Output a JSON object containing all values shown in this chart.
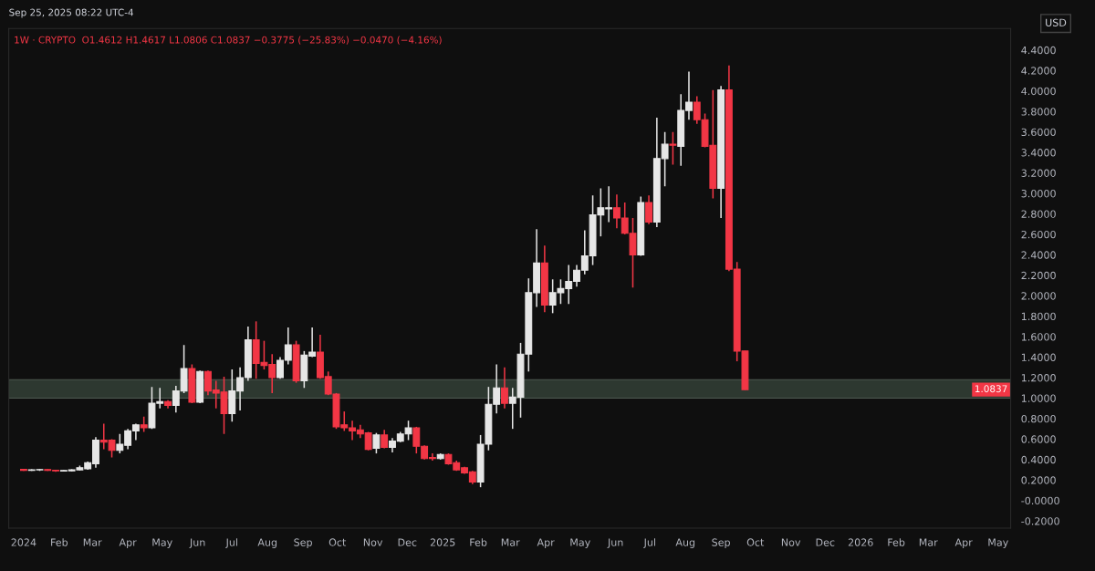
{
  "chart_data": {
    "type": "candlestick",
    "title": "1W · CRYPTO  O1.4612 H1.4617 L1.0806 C1.0837 −0.3775 (−25.83%) −0.0470 (−4.16%)",
    "ylabel": "USD",
    "annotations": [
      "Sep 25, 2025 08:22 UTC-4",
      {
        "text": "1.0837",
        "y": 1.0837
      }
    ],
    "x": [
      "2024-01-01",
      "2024-01-08",
      "2024-01-15",
      "2024-01-22",
      "2024-01-29",
      "2024-02-05",
      "2024-02-12",
      "2024-02-19",
      "2024-02-26",
      "2024-03-04",
      "2024-03-11",
      "2024-03-18",
      "2024-03-25",
      "2024-04-01",
      "2024-04-08",
      "2024-04-15",
      "2024-04-22",
      "2024-04-29",
      "2024-05-06",
      "2024-05-13",
      "2024-05-20",
      "2024-05-27",
      "2024-06-03",
      "2024-06-10",
      "2024-06-17",
      "2024-06-24",
      "2024-07-01",
      "2024-07-08",
      "2024-07-15",
      "2024-07-22",
      "2024-07-29",
      "2024-08-05",
      "2024-08-12",
      "2024-08-19",
      "2024-08-26",
      "2024-09-02",
      "2024-09-09",
      "2024-09-16",
      "2024-09-23",
      "2024-09-30",
      "2024-10-07",
      "2024-10-14",
      "2024-10-21",
      "2024-10-28",
      "2024-11-04",
      "2024-11-11",
      "2024-11-18",
      "2024-11-25",
      "2024-12-02",
      "2024-12-09",
      "2024-12-16",
      "2024-12-23",
      "2024-12-30",
      "2025-01-06",
      "2025-01-13",
      "2025-01-20",
      "2025-01-27",
      "2025-02-03",
      "2025-02-10",
      "2025-02-17",
      "2025-02-24",
      "2025-03-03",
      "2025-03-10",
      "2025-03-17",
      "2025-03-24",
      "2025-03-31",
      "2025-04-07",
      "2025-04-14",
      "2025-04-21",
      "2025-04-28",
      "2025-05-05",
      "2025-05-12",
      "2025-05-19",
      "2025-05-26",
      "2025-06-02",
      "2025-06-09",
      "2025-06-16",
      "2025-06-23",
      "2025-06-30",
      "2025-07-07",
      "2025-07-14",
      "2025-07-21",
      "2025-07-28",
      "2025-08-04",
      "2025-08-11",
      "2025-08-18",
      "2025-08-25",
      "2025-09-01",
      "2025-09-08",
      "2025-09-15",
      "2025-09-22"
    ],
    "ohlc": [
      [
        0.305,
        0.31,
        0.29,
        0.295
      ],
      [
        0.295,
        0.305,
        0.29,
        0.3
      ],
      [
        0.3,
        0.305,
        0.29,
        0.302
      ],
      [
        0.302,
        0.305,
        0.29,
        0.295
      ],
      [
        0.295,
        0.3,
        0.28,
        0.29
      ],
      [
        0.287,
        0.296,
        0.283,
        0.293
      ],
      [
        0.29,
        0.305,
        0.285,
        0.3
      ],
      [
        0.3,
        0.34,
        0.295,
        0.32
      ],
      [
        0.31,
        0.38,
        0.3,
        0.37
      ],
      [
        0.36,
        0.62,
        0.32,
        0.59
      ],
      [
        0.59,
        0.75,
        0.5,
        0.57
      ],
      [
        0.59,
        0.6,
        0.42,
        0.49
      ],
      [
        0.49,
        0.65,
        0.46,
        0.55
      ],
      [
        0.54,
        0.7,
        0.5,
        0.68
      ],
      [
        0.68,
        0.75,
        0.59,
        0.74
      ],
      [
        0.74,
        0.82,
        0.67,
        0.71
      ],
      [
        0.71,
        1.11,
        0.7,
        0.95
      ],
      [
        0.95,
        1.1,
        0.9,
        0.965
      ],
      [
        0.965,
        0.98,
        0.9,
        0.93
      ],
      [
        0.93,
        1.12,
        0.86,
        1.07
      ],
      [
        1.07,
        1.52,
        1.05,
        1.29
      ],
      [
        1.29,
        1.33,
        0.95,
        0.96
      ],
      [
        0.96,
        1.27,
        0.95,
        1.26
      ],
      [
        1.26,
        1.27,
        1.03,
        1.07
      ],
      [
        1.08,
        1.17,
        0.9,
        1.05
      ],
      [
        1.06,
        1.21,
        0.65,
        0.85
      ],
      [
        0.85,
        1.28,
        0.77,
        1.07
      ],
      [
        1.07,
        1.3,
        0.88,
        1.2
      ],
      [
        1.2,
        1.7,
        1.17,
        1.57
      ],
      [
        1.57,
        1.75,
        1.19,
        1.34
      ],
      [
        1.35,
        1.56,
        1.28,
        1.32
      ],
      [
        1.33,
        1.43,
        1.05,
        1.2
      ],
      [
        1.2,
        1.4,
        1.19,
        1.37
      ],
      [
        1.37,
        1.69,
        1.33,
        1.52
      ],
      [
        1.52,
        1.56,
        1.15,
        1.17
      ],
      [
        1.17,
        1.46,
        1.1,
        1.42
      ],
      [
        1.41,
        1.69,
        1.4,
        1.45
      ],
      [
        1.45,
        1.62,
        1.19,
        1.2
      ],
      [
        1.21,
        1.26,
        1.03,
        1.04
      ],
      [
        1.04,
        1.05,
        0.7,
        0.72
      ],
      [
        0.74,
        0.87,
        0.68,
        0.71
      ],
      [
        0.71,
        0.78,
        0.59,
        0.68
      ],
      [
        0.69,
        0.74,
        0.61,
        0.65
      ],
      [
        0.66,
        0.67,
        0.49,
        0.5
      ],
      [
        0.51,
        0.66,
        0.46,
        0.64
      ],
      [
        0.64,
        0.69,
        0.51,
        0.52
      ],
      [
        0.52,
        0.61,
        0.47,
        0.58
      ],
      [
        0.58,
        0.67,
        0.57,
        0.65
      ],
      [
        0.65,
        0.78,
        0.59,
        0.71
      ],
      [
        0.71,
        0.72,
        0.46,
        0.53
      ],
      [
        0.53,
        0.54,
        0.4,
        0.41
      ],
      [
        0.42,
        0.46,
        0.39,
        0.41
      ],
      [
        0.41,
        0.46,
        0.4,
        0.45
      ],
      [
        0.45,
        0.46,
        0.35,
        0.36
      ],
      [
        0.37,
        0.39,
        0.29,
        0.3
      ],
      [
        0.32,
        0.33,
        0.26,
        0.27
      ],
      [
        0.28,
        0.29,
        0.16,
        0.18
      ],
      [
        0.18,
        0.64,
        0.13,
        0.55
      ],
      [
        0.55,
        1.11,
        0.49,
        0.94
      ],
      [
        0.94,
        1.33,
        0.85,
        1.1
      ],
      [
        1.1,
        1.3,
        0.9,
        0.95
      ],
      [
        0.95,
        1.1,
        0.7,
        1.01
      ],
      [
        1.01,
        1.54,
        0.81,
        1.43
      ],
      [
        1.43,
        2.17,
        1.26,
        2.03
      ],
      [
        2.03,
        2.65,
        1.89,
        2.32
      ],
      [
        2.32,
        2.49,
        1.84,
        1.91
      ],
      [
        1.91,
        2.16,
        1.83,
        2.03
      ],
      [
        2.03,
        2.16,
        1.92,
        2.07
      ],
      [
        2.07,
        2.3,
        1.92,
        2.14
      ],
      [
        2.14,
        2.3,
        2.09,
        2.25
      ],
      [
        2.25,
        2.64,
        2.21,
        2.39
      ],
      [
        2.39,
        2.98,
        2.3,
        2.79
      ],
      [
        2.79,
        3.05,
        2.58,
        2.86
      ],
      [
        2.85,
        3.07,
        2.72,
        2.86
      ],
      [
        2.86,
        2.99,
        2.66,
        2.76
      ],
      [
        2.76,
        2.91,
        2.6,
        2.61
      ],
      [
        2.61,
        2.76,
        2.08,
        2.4
      ],
      [
        2.4,
        2.97,
        2.39,
        2.91
      ],
      [
        2.91,
        2.98,
        2.7,
        2.72
      ],
      [
        2.72,
        3.74,
        2.67,
        3.34
      ],
      [
        3.34,
        3.6,
        3.07,
        3.48
      ],
      [
        3.48,
        3.6,
        3.28,
        3.47
      ],
      [
        3.46,
        3.97,
        3.27,
        3.81
      ],
      [
        3.81,
        4.19,
        3.72,
        3.89
      ],
      [
        3.89,
        3.95,
        3.68,
        3.72
      ],
      [
        3.72,
        3.78,
        3.45,
        3.46
      ],
      [
        3.47,
        4.01,
        2.95,
        3.05
      ],
      [
        3.05,
        4.05,
        2.76,
        4.01
      ],
      [
        4.01,
        4.25,
        2.24,
        2.26
      ],
      [
        2.26,
        2.33,
        1.36,
        1.46
      ],
      [
        1.4612,
        1.4617,
        1.0806,
        1.0837
      ]
    ],
    "colors": [
      "#f23645",
      "#e6e6e6",
      "#e6e6e6",
      "#f23645",
      "#f23645",
      "#e6e6e6",
      "#e6e6e6",
      "#e6e6e6",
      "#e6e6e6",
      "#e6e6e6",
      "#f23645",
      "#f23645",
      "#e6e6e6",
      "#e6e6e6",
      "#e6e6e6",
      "#f23645",
      "#e6e6e6",
      "#e6e6e6",
      "#f23645",
      "#e6e6e6",
      "#e6e6e6",
      "#f23645",
      "#e6e6e6",
      "#f23645",
      "#f23645",
      "#f23645",
      "#e6e6e6",
      "#e6e6e6",
      "#e6e6e6",
      "#f23645",
      "#f23645",
      "#f23645",
      "#e6e6e6",
      "#e6e6e6",
      "#f23645",
      "#e6e6e6",
      "#e6e6e6",
      "#f23645",
      "#f23645",
      "#f23645",
      "#f23645",
      "#f23645",
      "#f23645",
      "#f23645",
      "#e6e6e6",
      "#f23645",
      "#e6e6e6",
      "#e6e6e6",
      "#e6e6e6",
      "#f23645",
      "#f23645",
      "#f23645",
      "#e6e6e6",
      "#f23645",
      "#f23645",
      "#f23645",
      "#f23645",
      "#e6e6e6",
      "#e6e6e6",
      "#e6e6e6",
      "#f23645",
      "#e6e6e6",
      "#e6e6e6",
      "#e6e6e6",
      "#e6e6e6",
      "#f23645",
      "#e6e6e6",
      "#e6e6e6",
      "#e6e6e6",
      "#e6e6e6",
      "#e6e6e6",
      "#e6e6e6",
      "#e6e6e6",
      "#e6e6e6",
      "#f23645",
      "#f23645",
      "#f23645",
      "#e6e6e6",
      "#f23645",
      "#e6e6e6",
      "#e6e6e6",
      "#f23645",
      "#e6e6e6",
      "#e6e6e6",
      "#f23645",
      "#f23645",
      "#f23645",
      "#e6e6e6",
      "#f23645",
      "#f23645",
      "#f23645"
    ],
    "bands": [
      {
        "axis": "y",
        "from": 1.0,
        "to": 1.18,
        "color": "#3b4a3f"
      }
    ],
    "xlim": [
      "2023-12-19",
      "2026-05-12"
    ],
    "xticks": [
      {
        "value": "2024-01-01",
        "label": "2024"
      },
      {
        "value": "2024-02-01",
        "label": "Feb"
      },
      {
        "value": "2024-03-01",
        "label": "Mar"
      },
      {
        "value": "2024-04-01",
        "label": "Apr"
      },
      {
        "value": "2024-05-01",
        "label": "May"
      },
      {
        "value": "2024-06-01",
        "label": "Jun"
      },
      {
        "value": "2024-07-01",
        "label": "Jul"
      },
      {
        "value": "2024-08-01",
        "label": "Aug"
      },
      {
        "value": "2024-09-01",
        "label": "Sep"
      },
      {
        "value": "2024-10-01",
        "label": "Oct"
      },
      {
        "value": "2024-11-01",
        "label": "Nov"
      },
      {
        "value": "2024-12-01",
        "label": "Dec"
      },
      {
        "value": "2025-01-01",
        "label": "2025"
      },
      {
        "value": "2025-02-01",
        "label": "Feb"
      },
      {
        "value": "2025-03-01",
        "label": "Mar"
      },
      {
        "value": "2025-04-01",
        "label": "Apr"
      },
      {
        "value": "2025-05-01",
        "label": "May"
      },
      {
        "value": "2025-06-01",
        "label": "Jun"
      },
      {
        "value": "2025-07-01",
        "label": "Jul"
      },
      {
        "value": "2025-08-01",
        "label": "Aug"
      },
      {
        "value": "2025-09-01",
        "label": "Sep"
      },
      {
        "value": "2025-10-01",
        "label": "Oct"
      },
      {
        "value": "2025-11-01",
        "label": "Nov"
      },
      {
        "value": "2025-12-01",
        "label": "Dec"
      },
      {
        "value": "2026-01-01",
        "label": "2026"
      },
      {
        "value": "2026-02-01",
        "label": "Feb"
      },
      {
        "value": "2026-03-01",
        "label": "Mar"
      },
      {
        "value": "2026-04-01",
        "label": "Apr"
      },
      {
        "value": "2026-05-01",
        "label": "May"
      }
    ],
    "ylim": [
      -0.27,
      4.61
    ],
    "yticks": [
      {
        "value": -0.2,
        "label": "-0.2000"
      },
      {
        "value": 0,
        "label": "-0.0000"
      },
      {
        "value": 0.2,
        "label": "0.2000"
      },
      {
        "value": 0.4,
        "label": "0.4000"
      },
      {
        "value": 0.6,
        "label": "0.6000"
      },
      {
        "value": 0.8,
        "label": "0.8000"
      },
      {
        "value": 1.0,
        "label": "1.0000"
      },
      {
        "value": 1.2,
        "label": "1.2000"
      },
      {
        "value": 1.4,
        "label": "1.4000"
      },
      {
        "value": 1.6,
        "label": "1.6000"
      },
      {
        "value": 1.8,
        "label": "1.8000"
      },
      {
        "value": 2.0,
        "label": "2.0000"
      },
      {
        "value": 2.2,
        "label": "2.2000"
      },
      {
        "value": 2.4,
        "label": "2.4000"
      },
      {
        "value": 2.6,
        "label": "2.6000"
      },
      {
        "value": 2.8,
        "label": "2.8000"
      },
      {
        "value": 3.0,
        "label": "3.0000"
      },
      {
        "value": 3.2,
        "label": "3.2000"
      },
      {
        "value": 3.4,
        "label": "3.4000"
      },
      {
        "value": 3.6,
        "label": "3.6000"
      },
      {
        "value": 3.8,
        "label": "3.8000"
      },
      {
        "value": 4.0,
        "label": "4.0000"
      },
      {
        "value": 4.2,
        "label": "4.2000"
      },
      {
        "value": 4.4,
        "label": "4.4000"
      }
    ],
    "grid": false,
    "legend": false
  }
}
